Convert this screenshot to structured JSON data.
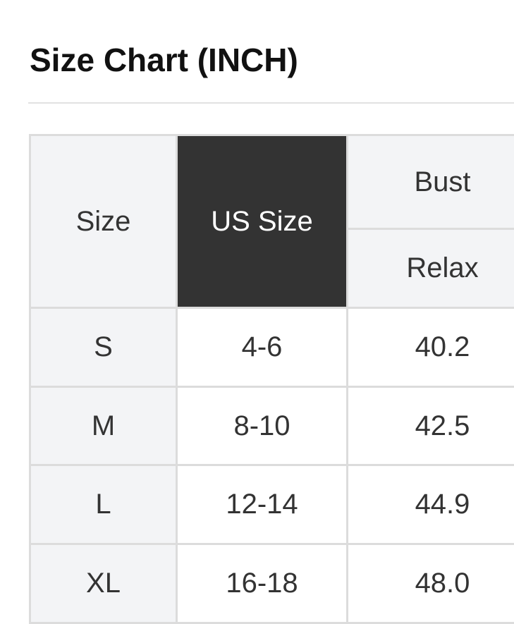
{
  "title": "Size Chart (INCH)",
  "table": {
    "headers": {
      "size": "Size",
      "us_size": "US Size",
      "bust": "Bust",
      "relax": "Relax"
    },
    "rows": [
      {
        "size": "S",
        "us_size": "4-6",
        "bust_relax": "40.2"
      },
      {
        "size": "M",
        "us_size": "8-10",
        "bust_relax": "42.5"
      },
      {
        "size": "L",
        "us_size": "12-14",
        "bust_relax": "44.9"
      },
      {
        "size": "XL",
        "us_size": "16-18",
        "bust_relax": "48.0"
      }
    ]
  },
  "colors": {
    "header_bg": "#f3f4f6",
    "highlight_bg": "#333333",
    "border": "#dcdcdc"
  }
}
